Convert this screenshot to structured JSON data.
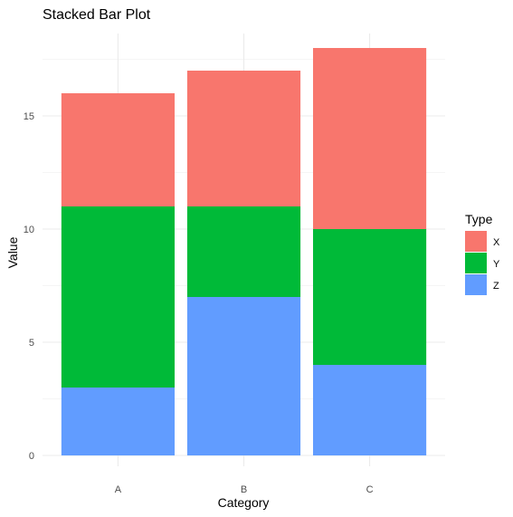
{
  "chart_data": {
    "type": "bar",
    "stacked": true,
    "title": "Stacked Bar Plot",
    "xlabel": "Category",
    "ylabel": "Value",
    "categories": [
      "A",
      "B",
      "C"
    ],
    "ylim": [
      0,
      18.9
    ],
    "yticks": [
      0,
      5,
      10,
      15
    ],
    "ytick_labels": [
      "0",
      "5",
      "10",
      "15"
    ],
    "grid": true,
    "legend": {
      "title": "Type",
      "position": "right"
    },
    "series": [
      {
        "name": "Z",
        "values": [
          3,
          7,
          4
        ],
        "color": "#619CFF"
      },
      {
        "name": "Y",
        "values": [
          8,
          4,
          6
        ],
        "color": "#00BA38"
      },
      {
        "name": "X",
        "values": [
          5,
          6,
          8
        ],
        "color": "#F8766D"
      }
    ],
    "legend_order": [
      "X",
      "Y",
      "Z"
    ]
  }
}
